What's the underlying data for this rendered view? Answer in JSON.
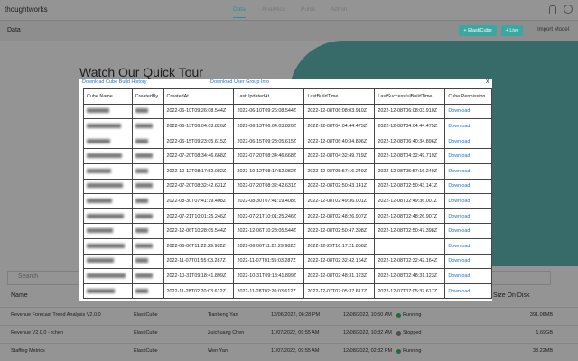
{
  "nav": {
    "logo": "thoughtworks",
    "tabs": [
      "Data",
      "Analytics",
      "Pulse",
      "Admin"
    ]
  },
  "toolbar": {
    "title": "Data",
    "buttons": [
      "+ ElastiCube",
      "+ Live"
    ],
    "import": "Import Model"
  },
  "hero": {
    "title": "Watch Our Quick Tour"
  },
  "list": {
    "search": "Search",
    "headers": [
      "Name",
      "Size On Disk"
    ],
    "rows": [
      [
        "Revenue Forecast Trend Analysis V2.0.0",
        "ElastiCube",
        "Tianheng Yan",
        "12/06/2022, 06:28 PM",
        "12/08/2022, 10:50 AM",
        "Running",
        "391.06MB"
      ],
      [
        "Revenue V2.0.0 - rchen",
        "ElastiCube",
        "Zuichuang Chen",
        "11/07/2022, 09:55 AM",
        "12/08/2022, 10:32 AM",
        "Stopped",
        "1.69GB"
      ],
      [
        "Staffing Metrics",
        "ElastiCube",
        "Wen Yan",
        "11/07/2022, 09:55 AM",
        "12/08/2022, 02:32 PM",
        "Running",
        "38.22MB"
      ]
    ]
  },
  "modal": {
    "links": [
      "Download Cube Build History",
      "Download User Group Info"
    ],
    "close": "x",
    "table": {
      "headers": [
        "Cube Name",
        "CreatedBy",
        "CreatedAt",
        "LastUpdatedAt",
        "LastBuildTime",
        "LastSuccessfulBuildTime",
        "Cube Permission"
      ],
      "action": "Download",
      "rows": [
        [
          "2022-06-10T09:26:08.544Z",
          "2022-06-10T09:26:08.544Z",
          "2022-12-08T06:08:03.910Z",
          "2022-12-08T06:08:03.910Z"
        ],
        [
          "2022-06-13T06:04:03.826Z",
          "2022-06-13T06:04:03.826Z",
          "2022-12-08T04:04:44.475Z",
          "2022-12-08T04:04:44.475Z"
        ],
        [
          "2022-06-15T09:23:05.615Z",
          "2022-06-15T09:23:05.615Z",
          "2022-12-08T06:40:34.896Z",
          "2022-12-08T06:40:34.896Z"
        ],
        [
          "2022-07-20T08:34:46.668Z",
          "2022-07-20T08:34:46.668Z",
          "2022-12-08T04:32:49.719Z",
          "2022-12-08T04:32:49.719Z"
        ],
        [
          "2022-10-12T08:17:52.082Z",
          "2022-10-12T08:17:52.082Z",
          "2022-12-08T05:57:16.249Z",
          "2022-12-08T05:57:16.249Z"
        ],
        [
          "2022-07-20T08:32:42.631Z",
          "2022-07-20T08:32:42.631Z",
          "2022-12-08T02:50:43.141Z",
          "2022-12-08T02:50:43.141Z"
        ],
        [
          "2022-08-30T07:41:19.408Z",
          "2022-08-30T07:41:19.408Z",
          "2022-12-08T02:49:36.001Z",
          "2022-12-08T02:49:36.001Z"
        ],
        [
          "2022-07-21T10:01:25.246Z",
          "2022-07-21T10:01:25.246Z",
          "2022-12-08T02:48:26.907Z",
          "2022-12-08T02:48:26.907Z"
        ],
        [
          "2022-12-06T10:28:05.544Z",
          "2022-12-06T10:28:05.544Z",
          "2022-12-08T02:50:47.398Z",
          "2022-12-08T02:50:47.398Z"
        ],
        [
          "2022-06-06T11:22:29.982Z",
          "2022-06-06T11:22:29.982Z",
          "2022-12-29T16:17:21.856Z",
          null
        ],
        [
          "2022-11-07T01:55:03.287Z",
          "2022-11-07T01:55:03.287Z",
          "2022-12-08T02:32:42.164Z",
          "2022-12-08T02:32:42.164Z"
        ],
        [
          "2022-10-31T09:18:41.899Z",
          "2022-10-31T09:18:41.899Z",
          "2022-12-08T02:48:31.123Z",
          "2022-12-08T02:48:31.123Z"
        ],
        [
          "2022-11-28T02:20:03.612Z",
          "2022-11-28T02:20:03.612Z",
          "2022-12-07T07:05:37.617Z",
          "2022-12-07T07:05:37.617Z"
        ]
      ]
    }
  }
}
